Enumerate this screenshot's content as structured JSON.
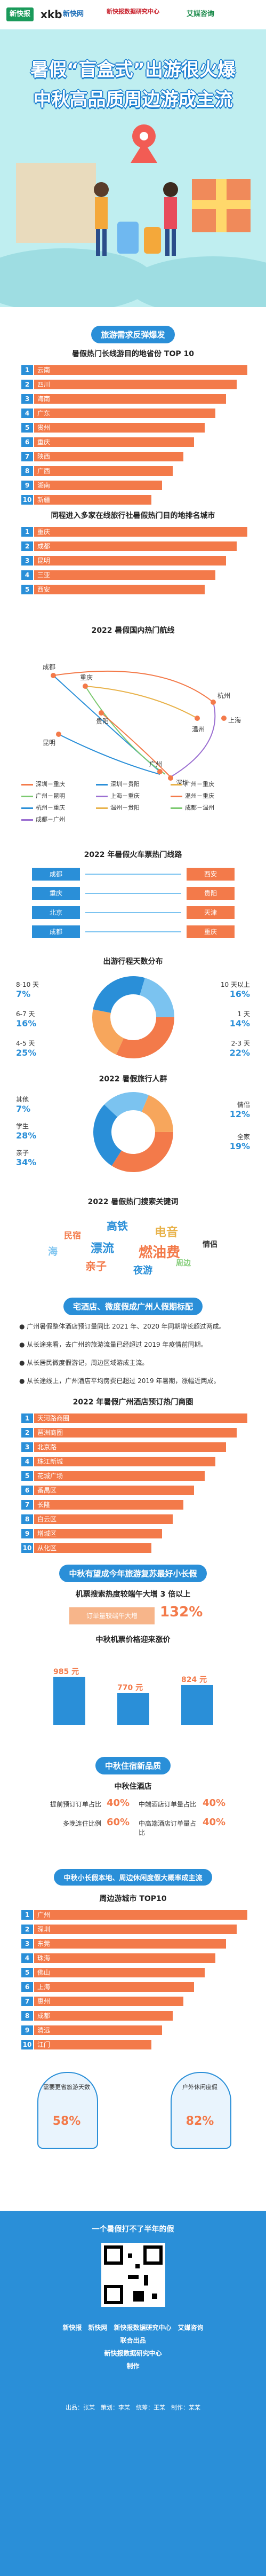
{
  "logos": {
    "l1": "新快报",
    "l2": "xkb",
    "l3": "新快网",
    "l4": "新快报数据研究中心",
    "l5": "艾媒咨询"
  },
  "hero": {
    "title1": "暑假“盲盒式”出游很火爆",
    "title2": "中秋高品质周边游成主流"
  },
  "s1": {
    "tag": "旅游需求反弹爆发",
    "t1": "暑假热门长线游目的地省份 TOP 10",
    "provinces": [
      "云南",
      "四川",
      "海南",
      "广东",
      "贵州",
      "重庆",
      "陕西",
      "广西",
      "湖南",
      "新疆"
    ],
    "t2": "同程进入多家在线旅行社暑假热门目的地排名城市",
    "cities": [
      "重庆",
      "成都",
      "昆明",
      "三亚",
      "西安"
    ]
  },
  "routes": {
    "title": "2022 暑假国内热门航线",
    "nodes": {
      "chengdu": "成都",
      "chongqing": "重庆",
      "hangzhou": "杭州",
      "shanghai": "上海",
      "guiyang": "贵阳",
      "wenzhou": "温州",
      "guangzhou": "广州",
      "shenzhen": "深圳",
      "kunming": "昆明"
    },
    "legend": [
      "深圳－重庆",
      "深圳－贵阳",
      "广州－重庆",
      "广州－昆明",
      "上海－重庆",
      "温州－重庆",
      "杭州－重庆",
      "温州－贵阳",
      "成都－温州",
      "成都－广州"
    ]
  },
  "trains": {
    "title": "2022 年暑假火车票热门线路",
    "left": [
      "成都",
      "重庆",
      "北京",
      "成都"
    ],
    "right": [
      "西安",
      "贵阳",
      "天津",
      "重庆"
    ]
  },
  "days": {
    "title": "出游行程天数分布",
    "left": [
      {
        "label": "8-10 天",
        "value": "7%"
      },
      {
        "label": "6-7 天",
        "value": "16%"
      },
      {
        "label": "4-5 天",
        "value": "25%"
      }
    ],
    "right": [
      {
        "label": "10 天以上",
        "value": "16%"
      },
      {
        "label": "1 天",
        "value": "14%"
      },
      {
        "label": "2-3 天",
        "value": "22%"
      }
    ]
  },
  "people": {
    "title": "2022 暑假旅行人群",
    "left": [
      {
        "label": "其他",
        "value": "7%"
      },
      {
        "label": "学生",
        "value": "28%"
      },
      {
        "label": "亲子",
        "value": "34%"
      }
    ],
    "right": [
      {
        "label": "情侣",
        "value": "12%"
      },
      {
        "label": "全家",
        "value": "19%"
      }
    ]
  },
  "keywords": {
    "title": "2022 暑假热门搜索关键词",
    "words": [
      "高铁",
      "民宿",
      "电音",
      "漂流",
      "燃油费",
      "情侣",
      "海",
      "亲子",
      "夜游",
      "周边"
    ]
  },
  "s2": {
    "tag": "宅酒店、微度假成广州人假期标配",
    "bullets": [
      "广州暑假整体酒店预订量同比 2021 年、2020 年同期增长超过两成。",
      "从长途来看，去广州的旅游流量已经超过 2019 年疫情前同期。",
      "从长居民微度假游记，周边区域游成主流。",
      "从长途线上，广州酒店平均房费已超过 2019 年暑期，涨幅近两成。"
    ],
    "t": "2022 年暑假广州酒店预订热门商圈",
    "districts": [
      "天河路商圈",
      "琶洲商圈",
      "北京路",
      "珠江新城",
      "花城广场",
      "番禺区",
      "长隆",
      "白云区",
      "增城区",
      "从化区"
    ]
  },
  "s3": {
    "tag": "中秋有望成今年旅游复苏最好小长假",
    "t1": "机票搜索热度较端午大增 3 倍以上",
    "arrow": "订单量较端午大增",
    "big": "132%",
    "t2": "中秋机票价格迎来涨价",
    "hotel_values": [
      "985 元",
      "770 元",
      "824 元"
    ]
  },
  "s4": {
    "tag": "中秋住宿新品质",
    "t": "中秋住酒店",
    "lrows": [
      {
        "label": "提前预订订单占比",
        "value": "40%"
      },
      {
        "label": "多晚连住比例",
        "value": "60%"
      }
    ],
    "rrows": [
      {
        "label": "中端酒店订单量占比",
        "value": "40%"
      },
      {
        "label": "中高端酒店订单量占比",
        "value": "40%"
      }
    ]
  },
  "s5": {
    "tag": "中秋小长假本地、周边休闲度假大概率成主流",
    "t": "周边游城市 TOP10",
    "cities": [
      "广州",
      "深圳",
      "东莞",
      "珠海",
      "佛山",
      "上海",
      "惠州",
      "成都",
      "清远",
      "江门"
    ],
    "g1": {
      "label": "需要更省旅游天数",
      "value": "58%"
    },
    "g2": {
      "label": "户外休闲度假",
      "value": "82%"
    }
  },
  "footer": {
    "qr": "一个暑假打不了半年的假",
    "credits": [
      "新快报　新快网　新快报数据研究中心　艾媒咨询",
      "联合出品",
      "新快报数据研究中心",
      "制作"
    ],
    "names": "出品：张某　策划：李某　统筹：王某　制作：某某"
  }
}
